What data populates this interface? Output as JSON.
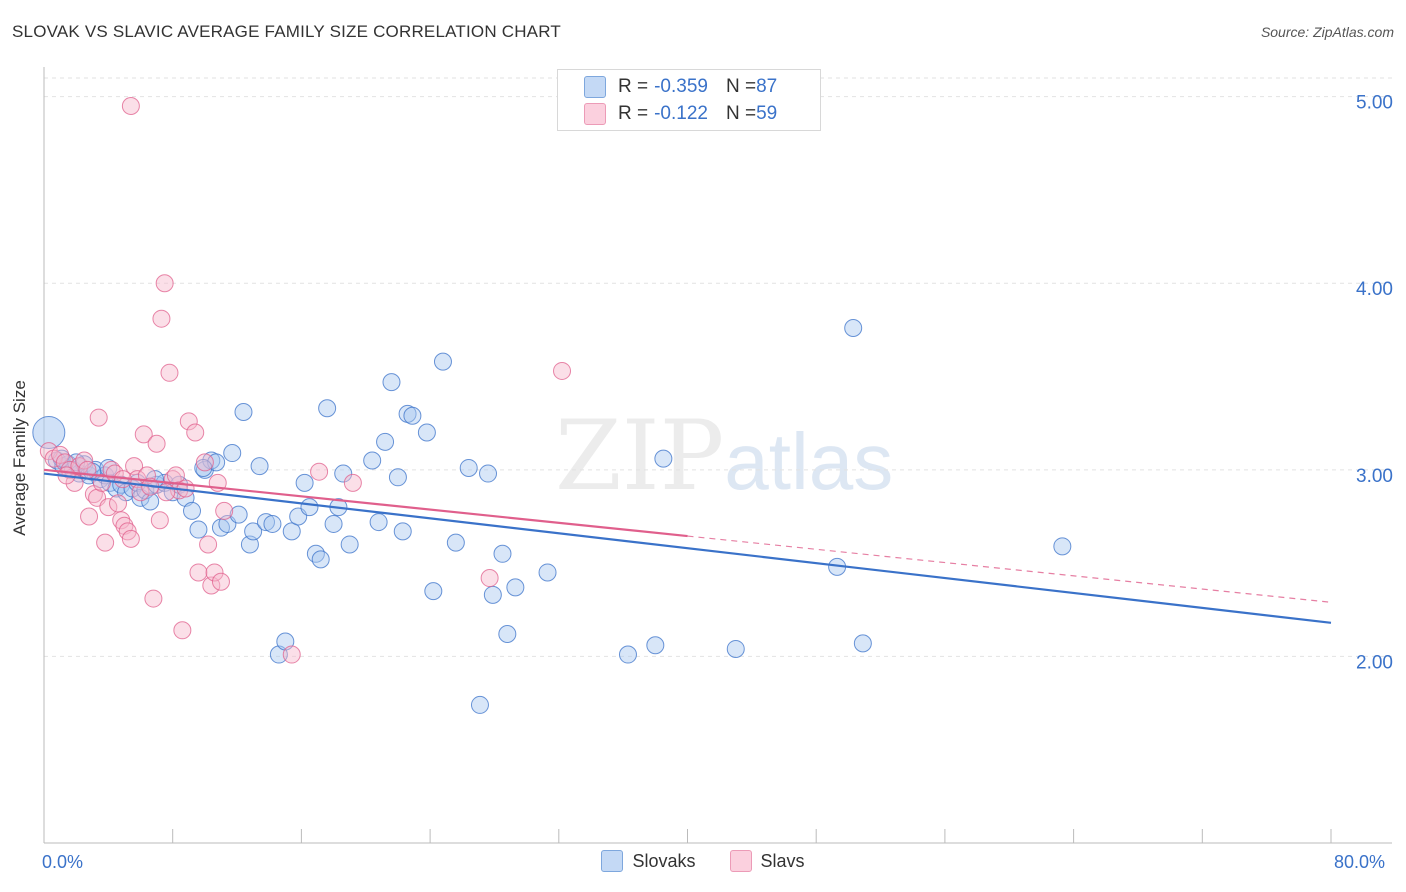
{
  "title": "SLOVAK VS SLAVIC AVERAGE FAMILY SIZE CORRELATION CHART",
  "source": "Source: ZipAtlas.com",
  "watermark": {
    "zip": "ZIP",
    "atlas": "atlas"
  },
  "legend": {
    "rows": [
      {
        "r_label": "R = ",
        "r_value": "-0.359",
        "n_label": "N = ",
        "n_value": "87",
        "color": "#a9c8f0"
      },
      {
        "r_label": "R = ",
        "r_value": "-0.122",
        "n_label": "N = ",
        "n_value": "59",
        "color": "#f6b8cc"
      }
    ]
  },
  "bottom_legend": [
    "Slovaks",
    "Slavs"
  ],
  "chart_data": {
    "type": "scatter",
    "title": "SLOVAK VS SLAVIC AVERAGE FAMILY SIZE CORRELATION CHART",
    "xlabel": "",
    "ylabel": "Average Family Size",
    "xlim": [
      0,
      80
    ],
    "ylim": [
      1.0,
      5.1
    ],
    "x_tick_labels": [
      "0.0%",
      "80.0%"
    ],
    "y_ticks": [
      2.0,
      3.0,
      4.0,
      5.0
    ],
    "y_tick_labels": [
      "2.00",
      "3.00",
      "4.00",
      "5.00"
    ],
    "grid": true,
    "series": [
      {
        "name": "Slovaks",
        "color": "#3a72c9",
        "fill": "#a9c8f0",
        "r": -0.359,
        "n": 87,
        "trend": {
          "x0": 0,
          "y0": 2.98,
          "x1": 80,
          "y1": 2.18,
          "dashed_from": null
        },
        "points": [
          [
            0.3,
            3.2
          ],
          [
            0.8,
            3.05
          ],
          [
            1.2,
            3.02
          ],
          [
            1.5,
            3.03
          ],
          [
            1.8,
            3.0
          ],
          [
            2.2,
            2.98
          ],
          [
            2.5,
            3.03
          ],
          [
            2.8,
            2.97
          ],
          [
            3.2,
            3.0
          ],
          [
            3.5,
            2.95
          ],
          [
            3.8,
            2.97
          ],
          [
            4.1,
            2.93
          ],
          [
            4.5,
            2.9
          ],
          [
            4.8,
            2.92
          ],
          [
            5.1,
            2.88
          ],
          [
            5.5,
            2.9
          ],
          [
            5.8,
            2.93
          ],
          [
            6.0,
            2.85
          ],
          [
            6.3,
            2.89
          ],
          [
            6.6,
            2.83
          ],
          [
            7.0,
            2.92
          ],
          [
            7.5,
            2.93
          ],
          [
            8.0,
            2.88
          ],
          [
            8.4,
            2.92
          ],
          [
            8.8,
            2.85
          ],
          [
            9.2,
            2.78
          ],
          [
            9.6,
            2.68
          ],
          [
            10.0,
            3.0
          ],
          [
            10.4,
            3.05
          ],
          [
            10.7,
            3.04
          ],
          [
            11.0,
            2.69
          ],
          [
            11.4,
            2.71
          ],
          [
            11.7,
            3.09
          ],
          [
            12.1,
            2.76
          ],
          [
            12.4,
            3.31
          ],
          [
            12.8,
            2.6
          ],
          [
            13.0,
            2.67
          ],
          [
            13.4,
            3.02
          ],
          [
            13.8,
            2.72
          ],
          [
            14.2,
            2.71
          ],
          [
            14.6,
            2.01
          ],
          [
            15.0,
            2.08
          ],
          [
            15.4,
            2.67
          ],
          [
            15.8,
            2.75
          ],
          [
            16.2,
            2.93
          ],
          [
            16.5,
            2.8
          ],
          [
            16.9,
            2.55
          ],
          [
            17.2,
            2.52
          ],
          [
            17.6,
            3.33
          ],
          [
            18.0,
            2.71
          ],
          [
            18.3,
            2.8
          ],
          [
            18.6,
            2.98
          ],
          [
            19.0,
            2.6
          ],
          [
            20.4,
            3.05
          ],
          [
            20.8,
            2.72
          ],
          [
            21.2,
            3.15
          ],
          [
            21.6,
            3.47
          ],
          [
            22.0,
            2.96
          ],
          [
            22.3,
            2.67
          ],
          [
            22.6,
            3.3
          ],
          [
            22.9,
            3.29
          ],
          [
            23.8,
            3.2
          ],
          [
            24.2,
            2.35
          ],
          [
            24.8,
            3.58
          ],
          [
            25.6,
            2.61
          ],
          [
            26.4,
            3.01
          ],
          [
            27.1,
            1.74
          ],
          [
            27.6,
            2.98
          ],
          [
            27.9,
            2.33
          ],
          [
            28.5,
            2.55
          ],
          [
            28.8,
            2.12
          ],
          [
            29.3,
            2.37
          ],
          [
            31.3,
            2.45
          ],
          [
            36.3,
            2.01
          ],
          [
            38.0,
            2.06
          ],
          [
            38.5,
            3.06
          ],
          [
            43.0,
            2.04
          ],
          [
            49.3,
            2.48
          ],
          [
            50.3,
            3.76
          ],
          [
            50.9,
            2.07
          ],
          [
            63.3,
            2.59
          ],
          [
            1.1,
            3.06
          ],
          [
            2.0,
            3.04
          ],
          [
            4.0,
            3.01
          ],
          [
            6.9,
            2.95
          ],
          [
            9.9,
            3.01
          ],
          [
            3.0,
            2.99
          ]
        ]
      },
      {
        "name": "Slavs",
        "color": "#e05f8c",
        "fill": "#f6b8cc",
        "r": -0.122,
        "n": 59,
        "trend": {
          "x0": 0,
          "y0": 3.0,
          "x1": 80,
          "y1": 2.29,
          "dashed_from": 40
        },
        "points": [
          [
            0.3,
            3.1
          ],
          [
            0.6,
            3.06
          ],
          [
            1.0,
            3.08
          ],
          [
            1.3,
            3.04
          ],
          [
            1.6,
            3.0
          ],
          [
            1.9,
            2.93
          ],
          [
            2.2,
            3.02
          ],
          [
            2.5,
            3.05
          ],
          [
            2.8,
            2.75
          ],
          [
            3.1,
            2.87
          ],
          [
            3.3,
            2.85
          ],
          [
            3.4,
            3.28
          ],
          [
            3.6,
            2.93
          ],
          [
            3.8,
            2.61
          ],
          [
            4.0,
            2.8
          ],
          [
            4.2,
            3.0
          ],
          [
            4.4,
            2.98
          ],
          [
            4.6,
            2.82
          ],
          [
            4.8,
            2.73
          ],
          [
            5.0,
            2.7
          ],
          [
            5.2,
            2.67
          ],
          [
            5.4,
            2.63
          ],
          [
            5.6,
            3.02
          ],
          [
            5.8,
            2.95
          ],
          [
            6.0,
            2.88
          ],
          [
            6.2,
            3.19
          ],
          [
            6.4,
            2.97
          ],
          [
            6.6,
            2.91
          ],
          [
            6.8,
            2.31
          ],
          [
            7.0,
            3.14
          ],
          [
            7.2,
            2.73
          ],
          [
            7.3,
            3.81
          ],
          [
            7.5,
            4.0
          ],
          [
            7.8,
            3.52
          ],
          [
            8.0,
            2.95
          ],
          [
            8.2,
            2.97
          ],
          [
            8.4,
            2.89
          ],
          [
            8.6,
            2.14
          ],
          [
            8.8,
            2.9
          ],
          [
            9.0,
            3.26
          ],
          [
            9.4,
            3.2
          ],
          [
            9.6,
            2.45
          ],
          [
            10.0,
            3.04
          ],
          [
            10.2,
            2.6
          ],
          [
            10.4,
            2.38
          ],
          [
            10.6,
            2.45
          ],
          [
            10.8,
            2.93
          ],
          [
            11.0,
            2.4
          ],
          [
            11.2,
            2.78
          ],
          [
            15.4,
            2.01
          ],
          [
            17.1,
            2.99
          ],
          [
            19.2,
            2.93
          ],
          [
            27.7,
            2.42
          ],
          [
            32.2,
            3.53
          ],
          [
            5.4,
            4.95
          ],
          [
            1.4,
            2.97
          ],
          [
            2.7,
            3.0
          ],
          [
            4.9,
            2.95
          ],
          [
            7.6,
            2.88
          ]
        ]
      }
    ]
  }
}
